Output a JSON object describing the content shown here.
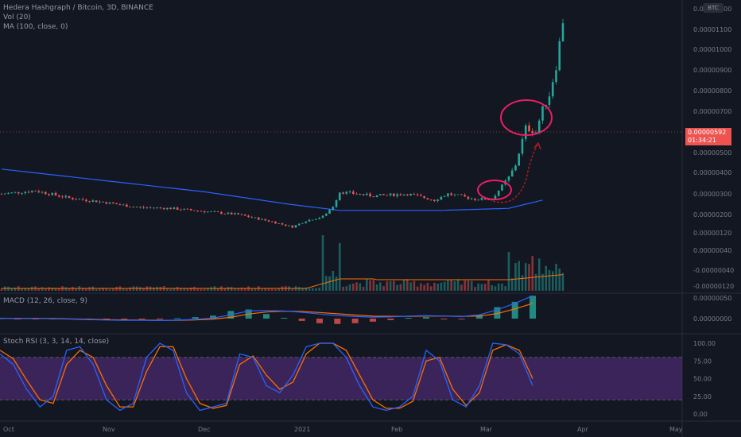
{
  "legend": {
    "symbol": "Hedera Hashgraph / Bitcoin, 3D, BINANCE",
    "vol": "Vol (20)",
    "ma": "MA (100, close, 0)",
    "macd": "MACD (12, 26, close, 9)",
    "stoch": "Stoch RSI (3, 3, 14, 14, close)"
  },
  "badge": "BTC",
  "last_price": {
    "value": "0.00000592",
    "countdown": "01:34:21"
  },
  "price_axis_labels": [
    "0.00001200",
    "0.00001100",
    "0.00001000",
    "0.00000900",
    "0.00000800",
    "0.00000700",
    "0.00000600",
    "0.00000500",
    "0.00000400",
    "0.00000300",
    "0.00000200",
    "0.00000120",
    "0.00000040",
    "-0.00000040",
    "-0.00000120"
  ],
  "macd_axis_labels": [
    "0.00000050",
    "0.00000000"
  ],
  "stoch_axis_labels": [
    "100.00",
    "75.00",
    "50.00",
    "25.00",
    "0.00"
  ],
  "time_axis_labels": [
    "Oct",
    "Nov",
    "Dec",
    "2021",
    "Feb",
    "Mar",
    "Apr",
    "May"
  ],
  "colors": {
    "up": "#26a69a",
    "down": "#ef5350",
    "ma": "#2962ff",
    "vol_ma": "#ff6d00",
    "macd": "#2962ff",
    "signal": "#ff6d00",
    "stoch_k": "#2962ff",
    "stoch_d": "#ff6d00",
    "stoch_band": "#4a2a6e",
    "annotation": "#e91e63",
    "arrow": "#b71c1c"
  },
  "chart_data": {
    "type": "candlestick",
    "title": "Hedera Hashgraph / Bitcoin, 3D, BINANCE",
    "ylim": [
      -1.2e-06,
      1.21e-05
    ],
    "x_labels": [
      "Oct",
      "Nov",
      "Dec",
      "2021",
      "Feb",
      "Mar",
      "Apr",
      "May"
    ],
    "close_path": [
      {
        "i": 0,
        "v": 3e-06
      },
      {
        "i": 10,
        "v": 3.15e-06
      },
      {
        "i": 20,
        "v": 2.8e-06
      },
      {
        "i": 30,
        "v": 2.6e-06
      },
      {
        "i": 40,
        "v": 2.35e-06
      },
      {
        "i": 50,
        "v": 2.3e-06
      },
      {
        "i": 60,
        "v": 2.15e-06
      },
      {
        "i": 70,
        "v": 2e-06
      },
      {
        "i": 80,
        "v": 1.65e-06
      },
      {
        "i": 86,
        "v": 1.4e-06
      },
      {
        "i": 90,
        "v": 1.7e-06
      },
      {
        "i": 95,
        "v": 1.9e-06
      },
      {
        "i": 98,
        "v": 2.4e-06
      },
      {
        "i": 100,
        "v": 3.1e-06
      },
      {
        "i": 110,
        "v": 2.9e-06
      },
      {
        "i": 120,
        "v": 3e-06
      },
      {
        "i": 128,
        "v": 2.7e-06
      },
      {
        "i": 132,
        "v": 3e-06
      },
      {
        "i": 140,
        "v": 2.75e-06
      },
      {
        "i": 145,
        "v": 2.75e-06
      },
      {
        "i": 150,
        "v": 3.8e-06
      },
      {
        "i": 152,
        "v": 4.4e-06
      },
      {
        "i": 155,
        "v": 6.2e-06
      },
      {
        "i": 158,
        "v": 6e-06
      },
      {
        "i": 160,
        "v": 7.1e-06
      },
      {
        "i": 162,
        "v": 7.8e-06
      },
      {
        "i": 164,
        "v": 9.2e-06
      },
      {
        "i": 166,
        "v": 1.14e-05
      }
    ],
    "ma_path": [
      {
        "i": 0,
        "v": 4.2e-06
      },
      {
        "i": 30,
        "v": 3.65e-06
      },
      {
        "i": 60,
        "v": 3.1e-06
      },
      {
        "i": 85,
        "v": 2.5e-06
      },
      {
        "i": 100,
        "v": 2.2e-06
      },
      {
        "i": 130,
        "v": 2.2e-06
      },
      {
        "i": 150,
        "v": 2.3e-06
      },
      {
        "i": 160,
        "v": 2.7e-06
      }
    ],
    "stoch": {
      "k": [
        85,
        70,
        35,
        10,
        25,
        90,
        95,
        70,
        20,
        5,
        15,
        80,
        100,
        90,
        30,
        5,
        10,
        15,
        85,
        80,
        40,
        30,
        55,
        95,
        100,
        100,
        80,
        40,
        10,
        5,
        10,
        25,
        90,
        75,
        20,
        10,
        40,
        100,
        98,
        85,
        40
      ],
      "d": [
        90,
        78,
        48,
        20,
        15,
        70,
        90,
        80,
        40,
        10,
        10,
        60,
        95,
        95,
        50,
        15,
        8,
        12,
        70,
        82,
        55,
        35,
        45,
        85,
        100,
        100,
        90,
        55,
        20,
        8,
        8,
        18,
        75,
        80,
        35,
        12,
        30,
        90,
        98,
        90,
        50
      ]
    },
    "macd": {
      "macd": [
        0.15,
        0.1,
        0.05,
        -0.05,
        -0.2,
        -0.4,
        -0.55,
        -0.65,
        -0.7,
        -0.75,
        -0.6,
        -0.3,
        0.2,
        1.5,
        3.0,
        3.2,
        3.0,
        2.5,
        1.8,
        1.2,
        0.8,
        0.6,
        0.7,
        1.0,
        1.2,
        1.0,
        0.8,
        1.5,
        3.5,
        6.0,
        9.0
      ],
      "signal": [
        0.1,
        0.1,
        0.08,
        0.02,
        -0.1,
        -0.25,
        -0.4,
        -0.52,
        -0.6,
        -0.66,
        -0.65,
        -0.5,
        -0.2,
        0.5,
        1.8,
        2.6,
        2.9,
        2.8,
        2.4,
        1.9,
        1.4,
        1.0,
        0.9,
        0.9,
        1.0,
        1.0,
        0.9,
        1.0,
        2.0,
        3.8,
        6.0
      ]
    }
  }
}
